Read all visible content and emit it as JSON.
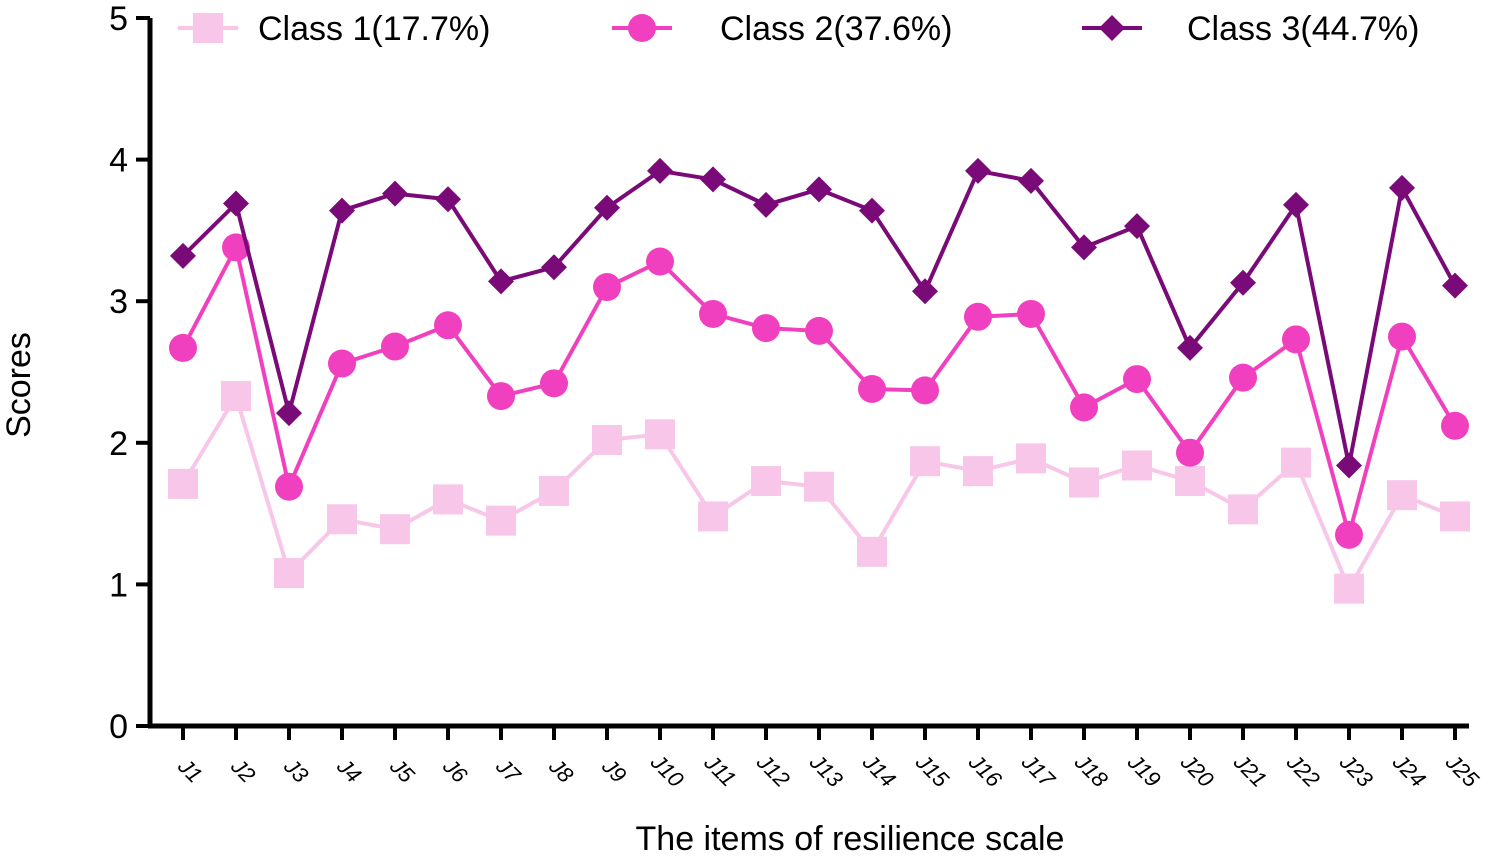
{
  "chart_data": {
    "type": "line",
    "title": "",
    "xlabel": "The items of resilience scale",
    "ylabel": "Scores",
    "ylim": [
      0,
      5
    ],
    "yticks": [
      0,
      1,
      2,
      3,
      4,
      5
    ],
    "grid": false,
    "legend_position": "top",
    "categories": [
      "J1",
      "J2",
      "J3",
      "J4",
      "J5",
      "J6",
      "J7",
      "J8",
      "J9",
      "J10",
      "J11",
      "J12",
      "J13",
      "J14",
      "J15",
      "J16",
      "J17",
      "J18",
      "J19",
      "J20",
      "J21",
      "J22",
      "J23",
      "J24",
      "J25"
    ],
    "series": [
      {
        "name": "Class 1(17.7%)",
        "marker": "square",
        "color": "#f7c6e8",
        "values": [
          1.71,
          2.33,
          1.08,
          1.46,
          1.39,
          1.6,
          1.45,
          1.66,
          2.02,
          2.06,
          1.48,
          1.73,
          1.69,
          1.23,
          1.87,
          1.8,
          1.89,
          1.72,
          1.84,
          1.73,
          1.53,
          1.86,
          0.97,
          1.63,
          1.48
        ]
      },
      {
        "name": "Class 2(37.6%)",
        "marker": "circle",
        "color": "#f040c0",
        "values": [
          2.67,
          3.38,
          1.69,
          2.56,
          2.68,
          2.83,
          2.33,
          2.42,
          3.1,
          3.28,
          2.91,
          2.81,
          2.79,
          2.38,
          2.37,
          2.89,
          2.91,
          2.25,
          2.45,
          1.93,
          2.46,
          2.73,
          1.35,
          2.75,
          2.12
        ]
      },
      {
        "name": "Class 3(44.7%)",
        "marker": "diamond",
        "color": "#7a0a78",
        "values": [
          3.32,
          3.69,
          2.21,
          3.64,
          3.76,
          3.72,
          3.14,
          3.24,
          3.66,
          3.92,
          3.86,
          3.68,
          3.79,
          3.64,
          3.07,
          3.92,
          3.85,
          3.38,
          3.53,
          2.67,
          3.13,
          3.68,
          1.84,
          3.8,
          3.11
        ]
      }
    ]
  }
}
